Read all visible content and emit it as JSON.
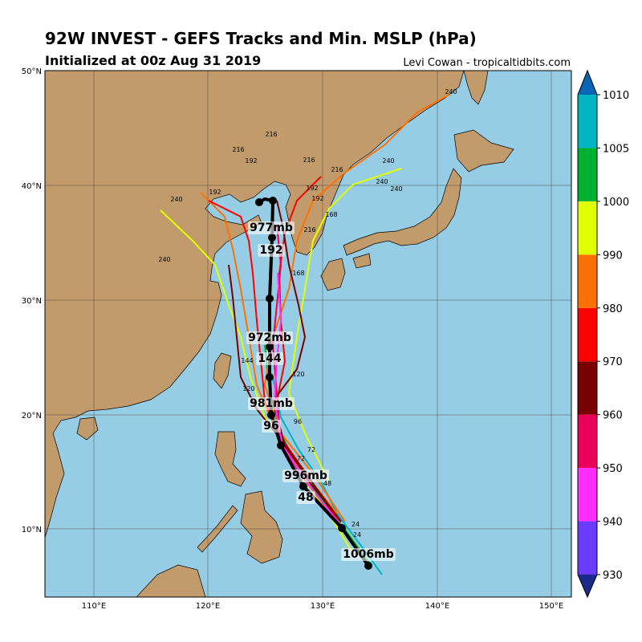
{
  "header": {
    "title": "92W INVEST - GEFS Tracks and Min. MSLP (hPa)",
    "subtitle": "Initialized at 00z Aug 31 2019",
    "credit": "Levi Cowan - tropicaltidbits.com"
  },
  "map": {
    "lon_labels": [
      "110°E",
      "120°E",
      "130°E",
      "140°E",
      "150°E"
    ],
    "lat_labels": [
      "50°N",
      "40°N",
      "30°N",
      "20°N",
      "10°N"
    ],
    "mean_labels": [
      "977mb",
      "192",
      "972mb",
      "144",
      "981mb",
      "96",
      "996mb",
      "48",
      "1006mb"
    ],
    "track_labels": [
      "240",
      "240",
      "240",
      "240",
      "240",
      "240",
      "216",
      "216",
      "216",
      "216",
      "216",
      "192",
      "192",
      "192",
      "192",
      "168",
      "168",
      "144",
      "120",
      "120",
      "96",
      "72",
      "72",
      "48",
      "24",
      "24"
    ]
  },
  "colorbar": {
    "ticks": [
      930,
      940,
      950,
      960,
      970,
      980,
      990,
      1000,
      1005,
      1010
    ],
    "colors": [
      "#1c2a8e",
      "#6a3cff",
      "#ff30ff",
      "#e8005a",
      "#780000",
      "#ff0000",
      "#ff7000",
      "#e0ff00",
      "#00b030",
      "#00b4c0",
      "#0a66b4"
    ]
  }
}
